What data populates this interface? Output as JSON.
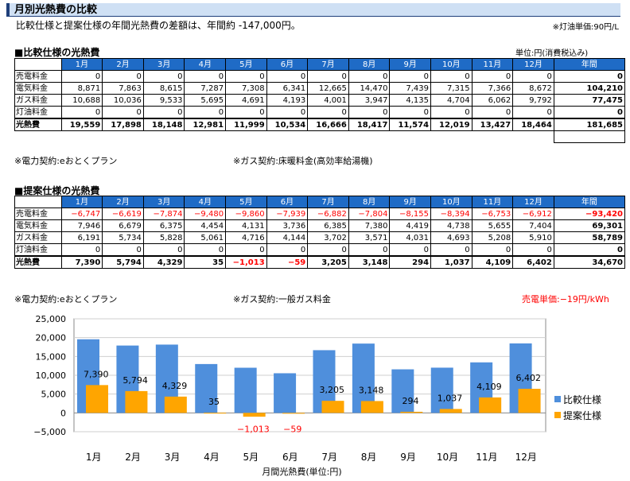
{
  "header": {
    "title": "月別光熱費の比較",
    "summary": "比較仕様と提案仕様の年間光熱費の差額は、年間約 -147,000円。",
    "kerosene_unit": "※灯油単価:90円/L"
  },
  "months": [
    "1月",
    "2月",
    "3月",
    "4月",
    "5月",
    "6月",
    "7月",
    "8月",
    "9月",
    "10月",
    "11月",
    "12月"
  ],
  "annual_label": "年間",
  "comparison": {
    "title": "■比較仕様の光熱費",
    "unit": "単位:円(消費税込み)",
    "rows": [
      {
        "label": "売電料金",
        "values": [
          "0",
          "0",
          "0",
          "0",
          "0",
          "0",
          "0",
          "0",
          "0",
          "0",
          "0",
          "0"
        ],
        "annual": "0"
      },
      {
        "label": "電気料金",
        "values": [
          "8,871",
          "7,863",
          "8,615",
          "7,287",
          "7,308",
          "6,341",
          "12,665",
          "14,470",
          "7,439",
          "7,315",
          "7,366",
          "8,672"
        ],
        "annual": "104,210"
      },
      {
        "label": "ガス料金",
        "values": [
          "10,688",
          "10,036",
          "9,533",
          "5,695",
          "4,691",
          "4,193",
          "4,001",
          "3,947",
          "4,135",
          "4,704",
          "6,062",
          "9,792"
        ],
        "annual": "77,475"
      },
      {
        "label": "灯油料金",
        "values": [
          "0",
          "0",
          "0",
          "0",
          "0",
          "0",
          "0",
          "0",
          "0",
          "0",
          "0",
          "0"
        ],
        "annual": "0"
      }
    ],
    "total": {
      "label": "光熱費",
      "values": [
        "19,559",
        "17,898",
        "18,148",
        "12,981",
        "11,999",
        "10,534",
        "16,666",
        "18,417",
        "11,574",
        "12,019",
        "13,427",
        "18,464"
      ],
      "annual": "181,685"
    },
    "foot_power": "※電力契約:eおとくプラン",
    "foot_gas": "※ガス契約:床暖料金(高効率給湯機)"
  },
  "proposal": {
    "title": "■提案仕様の光熱費",
    "rows": [
      {
        "label": "売電料金",
        "values": [
          "−6,747",
          "−6,619",
          "−7,874",
          "−9,480",
          "−9,860",
          "−7,939",
          "−6,882",
          "−7,804",
          "−8,155",
          "−8,394",
          "−6,753",
          "−6,912"
        ],
        "annual": "−93,420",
        "negative": true
      },
      {
        "label": "電気料金",
        "values": [
          "7,946",
          "6,679",
          "6,375",
          "4,454",
          "4,131",
          "3,736",
          "6,385",
          "7,380",
          "4,419",
          "4,738",
          "5,655",
          "7,404"
        ],
        "annual": "69,301"
      },
      {
        "label": "ガス料金",
        "values": [
          "6,191",
          "5,734",
          "5,828",
          "5,061",
          "4,716",
          "4,144",
          "3,702",
          "3,571",
          "4,031",
          "4,693",
          "5,208",
          "5,910"
        ],
        "annual": "58,789"
      },
      {
        "label": "灯油料金",
        "values": [
          "0",
          "0",
          "0",
          "0",
          "0",
          "0",
          "0",
          "0",
          "0",
          "0",
          "0",
          "0"
        ],
        "annual": "0"
      }
    ],
    "total": {
      "label": "光熱費",
      "values": [
        "7,390",
        "5,794",
        "4,329",
        "35",
        "−1,013",
        "−59",
        "3,205",
        "3,148",
        "294",
        "1,037",
        "4,109",
        "6,402"
      ],
      "annual": "34,670"
    },
    "foot_power": "※電力契約:eおとくプラン",
    "foot_gas": "※ガス契約:一般ガス料金",
    "sell_price": "売電単価:−19円/kWh"
  },
  "chart_data": {
    "type": "bar",
    "categories": [
      "1月",
      "2月",
      "3月",
      "4月",
      "5月",
      "6月",
      "7月",
      "8月",
      "9月",
      "10月",
      "11月",
      "12月"
    ],
    "series": [
      {
        "name": "比較仕様",
        "values": [
          19559,
          17898,
          18148,
          12981,
          11999,
          10534,
          16666,
          18417,
          11574,
          12019,
          13427,
          18464
        ],
        "color": "#4f8fdc"
      },
      {
        "name": "提案仕様",
        "values": [
          7390,
          5794,
          4329,
          35,
          -1013,
          -59,
          3205,
          3148,
          294,
          1037,
          4109,
          6402
        ],
        "color": "#ffa500"
      }
    ],
    "data_labels": [
      "7,390",
      "5,794",
      "4,329",
      "35",
      "−1,013",
      "−59",
      "3,205",
      "3,148",
      "294",
      "1,037",
      "4,109",
      "6,402"
    ],
    "y_ticks": [
      "25,000",
      "20,000",
      "15,000",
      "10,000",
      "5,000",
      "0",
      "−5,000"
    ],
    "ylim": [
      -5000,
      25000
    ],
    "xlabel": "月間光熱費(単位:円)",
    "legend_position": "right",
    "grid": true,
    "negative_color": "#ff0000"
  }
}
